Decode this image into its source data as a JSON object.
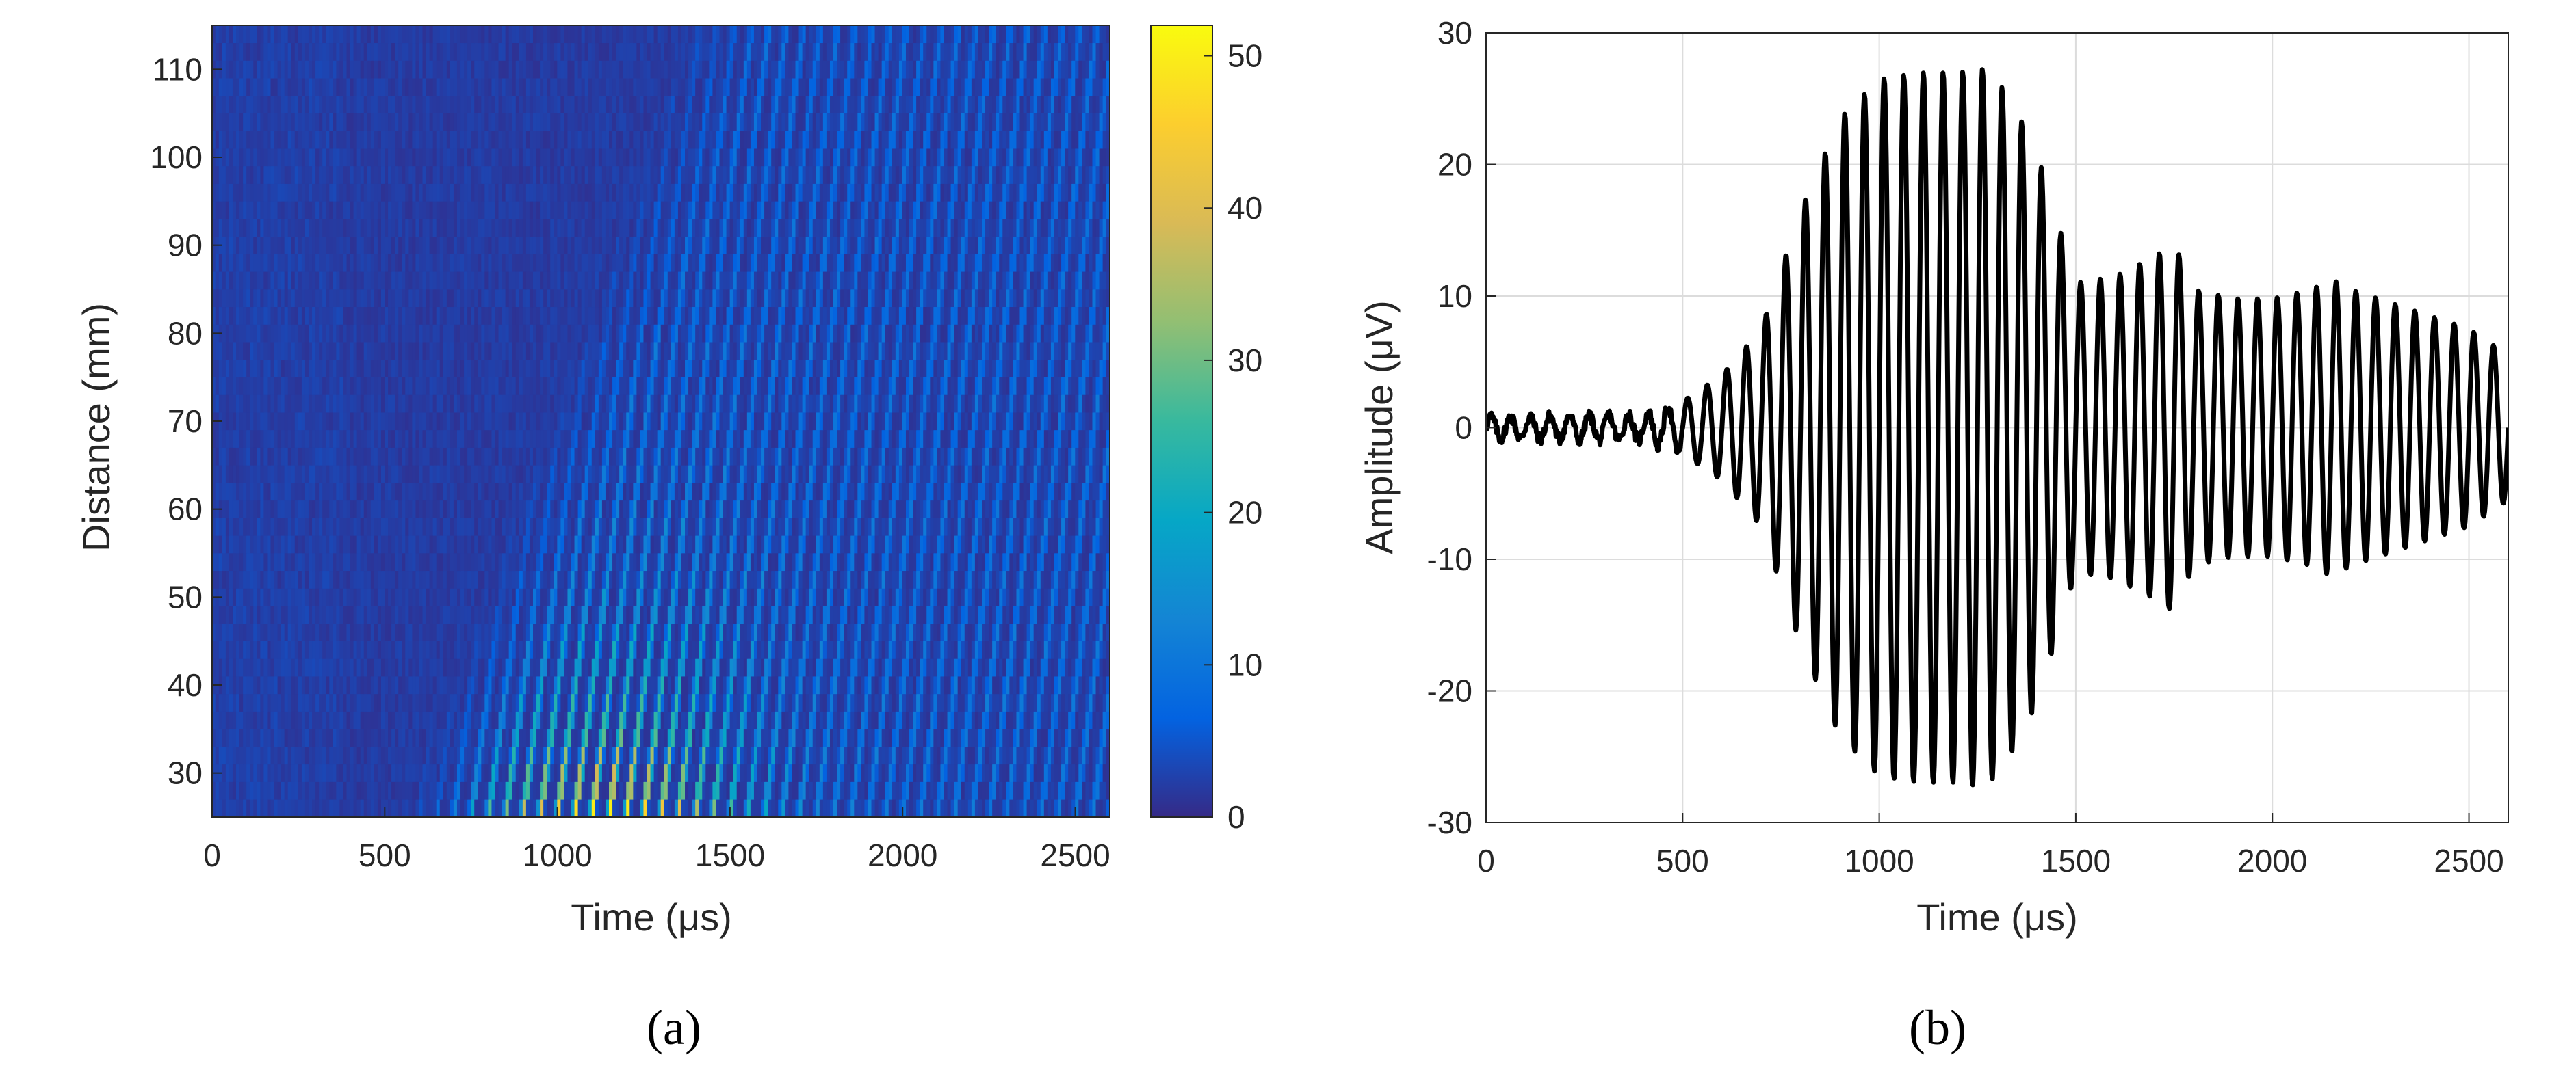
{
  "chart_data": [
    {
      "panel": "a",
      "type": "heatmap",
      "caption": "(a)",
      "xlabel": "Time (μs)",
      "ylabel": "Distance (mm)",
      "xlim": [
        0,
        2600
      ],
      "ylim": [
        25,
        115
      ],
      "xticks": [
        0,
        500,
        1000,
        1500,
        2000,
        2500
      ],
      "yticks": [
        30,
        40,
        50,
        60,
        70,
        80,
        90,
        100,
        110
      ],
      "colorbar": {
        "colormap": "parula",
        "clim": [
          0,
          52
        ],
        "ticks": [
          0,
          10,
          20,
          30,
          40,
          50
        ],
        "colors": [
          "#352a87",
          "#0363e1",
          "#1485d4",
          "#06a7c6",
          "#38b99e",
          "#92bf73",
          "#d9ba56",
          "#fcce2e",
          "#f9fb0e"
        ]
      },
      "field": {
        "description_values": "magnitude of wavefield vs time and distance",
        "wave_period_us": 50,
        "background_level": 1.5,
        "peak_level": 50,
        "peak_time_us": 1150,
        "peak_distance_mm": 27,
        "wave_onset_time_us_at_25mm": 550,
        "wave_onset_time_us_at_115mm": 1350
      }
    },
    {
      "panel": "b",
      "type": "line",
      "caption": "(b)",
      "xlabel": "Time (μs)",
      "ylabel": "Amplitude (μV)",
      "xlim": [
        0,
        2600
      ],
      "ylim": [
        -30,
        30
      ],
      "xticks": [
        0,
        500,
        1000,
        1500,
        2000,
        2500
      ],
      "yticks": [
        -30,
        -20,
        -10,
        0,
        10,
        20,
        30
      ],
      "grid": true,
      "series": [
        {
          "color": "#000000",
          "period_us": 50,
          "envelope": {
            "t": [
              0,
              400,
              500,
              600,
              700,
              800,
              900,
              1000,
              1100,
              1200,
              1260,
              1300,
              1350,
              1400,
              1450,
              1500,
              1600,
              1700,
              1750,
              1800,
              1900,
              2000,
              2100,
              2150,
              2200,
              2300,
              2400,
              2500,
              2600
            ],
            "amp": [
              0.8,
              1.0,
              2.0,
              4.0,
              7.5,
              16.5,
              23.5,
              26.5,
              27.0,
              27.0,
              27.3,
              26.5,
              24.0,
              21.0,
              16.0,
              11.0,
              11.5,
              13.0,
              14.0,
              10.5,
              9.8,
              9.8,
              10.5,
              11.3,
              10.5,
              9.5,
              8.5,
              7.5,
              5.5
            ]
          }
        }
      ]
    }
  ]
}
